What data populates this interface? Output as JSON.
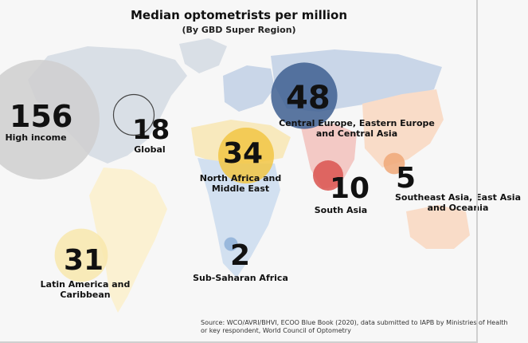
{
  "chart_data": {
    "type": "bubble-map",
    "title": "Median optometrists per million",
    "subtitle": "(By GBD Super Region)",
    "series": [
      {
        "name": "High income",
        "value": 156,
        "color": "#cfcfcf"
      },
      {
        "name": "Global",
        "value": 18,
        "color": "#ffffff"
      },
      {
        "name": "Central Europe, Eastern Europe\nand Central Asia",
        "value": 48,
        "color": "#3e5f91"
      },
      {
        "name": "North Africa and\nMiddle East",
        "value": 34,
        "color": "#f2c544"
      },
      {
        "name": "South Asia",
        "value": 10,
        "color": "#d9534f"
      },
      {
        "name": "Southeast Asia, East Asia\nand Oceania",
        "value": 5,
        "color": "#f0a878"
      },
      {
        "name": "Latin America and\nCaribbean",
        "value": 31,
        "color": "#f8e7ad"
      },
      {
        "name": "Sub-Saharan Africa",
        "value": 2,
        "color": "#8fb0d8"
      }
    ],
    "region_colors": {
      "north_america": "#d9dfe6",
      "south_america": "#fbf1d2",
      "europe": "#c9d6e8",
      "africa_north": "#f8e9bd",
      "africa_sub": "#d2e0f0",
      "asia_central": "#c9d6e8",
      "asia_east": "#f9dcc8",
      "asia_south": "#f3c9c5",
      "oceania": "#f9dcc8",
      "greenland": "#d9dfe6"
    }
  },
  "source": {
    "line1": "Source: WCO/AVRI/BHVI, ECOO Blue Book (2020), data submitted to IAPB by Ministries of Health",
    "line2": "or key respondent, World Council of Optometry"
  }
}
